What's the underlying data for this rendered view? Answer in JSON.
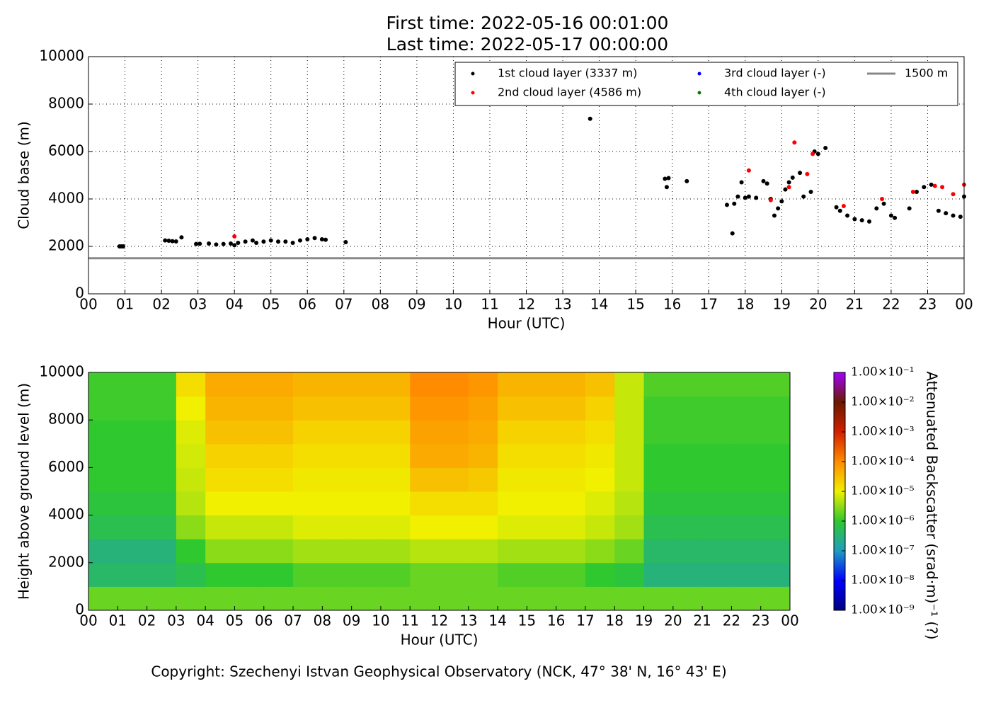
{
  "chart_data": [
    {
      "type": "scatter",
      "title": [
        "First time: 2022-05-16 00:01:00",
        "Last time: 2022-05-17 00:00:00"
      ],
      "x_label": "Hour (UTC)",
      "y_label": "Cloud base (m)",
      "xlim": [
        0,
        24
      ],
      "ylim": [
        0,
        10000
      ],
      "grid": true,
      "legend": "upper right",
      "legend_columns": 3,
      "xticks": [
        {
          "value": 0,
          "label": "00"
        },
        {
          "value": 1,
          "label": "01"
        },
        {
          "value": 2,
          "label": "02"
        },
        {
          "value": 3,
          "label": "03"
        },
        {
          "value": 4,
          "label": "04"
        },
        {
          "value": 5,
          "label": "05"
        },
        {
          "value": 6,
          "label": "06"
        },
        {
          "value": 7,
          "label": "07"
        },
        {
          "value": 8,
          "label": "08"
        },
        {
          "value": 9,
          "label": "09"
        },
        {
          "value": 10,
          "label": "10"
        },
        {
          "value": 11,
          "label": "11"
        },
        {
          "value": 12,
          "label": "12"
        },
        {
          "value": 13,
          "label": "13"
        },
        {
          "value": 14,
          "label": "14"
        },
        {
          "value": 15,
          "label": "15"
        },
        {
          "value": 16,
          "label": "16"
        },
        {
          "value": 17,
          "label": "17"
        },
        {
          "value": 18,
          "label": "18"
        },
        {
          "value": 19,
          "label": "19"
        },
        {
          "value": 20,
          "label": "20"
        },
        {
          "value": 21,
          "label": "21"
        },
        {
          "value": 22,
          "label": "22"
        },
        {
          "value": 23,
          "label": "23"
        },
        {
          "value": 24,
          "label": "00"
        }
      ],
      "yticks": [
        0,
        2000,
        4000,
        6000,
        8000,
        10000
      ],
      "series": [
        {
          "name": "1st cloud layer (3337 m)",
          "color": "#000000",
          "x": [
            0.85,
            0.9,
            0.95,
            2.1,
            2.2,
            2.3,
            2.4,
            2.55,
            2.95,
            3.05,
            3.3,
            3.5,
            3.7,
            3.9,
            4.0,
            4.1,
            4.3,
            4.5,
            4.6,
            4.8,
            5.0,
            5.2,
            5.4,
            5.6,
            5.8,
            6.0,
            6.2,
            6.4,
            6.5,
            7.05,
            13.75,
            15.8,
            15.85,
            15.9,
            16.4,
            17.5,
            17.65,
            17.7,
            17.8,
            17.9,
            18.0,
            18.1,
            18.3,
            18.5,
            18.6,
            18.7,
            18.8,
            18.9,
            19.0,
            19.1,
            19.2,
            19.3,
            19.5,
            19.6,
            19.8,
            19.9,
            20.0,
            20.2,
            20.5,
            20.6,
            20.8,
            21.0,
            21.2,
            21.4,
            21.6,
            21.8,
            22.0,
            22.1,
            22.5,
            22.7,
            22.9,
            23.1,
            23.3,
            23.5,
            23.7,
            23.9,
            24.0
          ],
          "y": [
            2000,
            2000,
            2000,
            2250,
            2240,
            2220,
            2210,
            2380,
            2100,
            2110,
            2120,
            2080,
            2100,
            2120,
            2050,
            2150,
            2200,
            2250,
            2150,
            2200,
            2250,
            2200,
            2200,
            2150,
            2250,
            2300,
            2350,
            2300,
            2280,
            2180,
            7380,
            4850,
            4500,
            4880,
            4750,
            3750,
            2550,
            3800,
            4100,
            4700,
            4050,
            4100,
            4050,
            4750,
            4650,
            4000,
            3300,
            3600,
            3900,
            4400,
            4700,
            4900,
            5100,
            4100,
            4300,
            6000,
            5900,
            6150,
            3650,
            3500,
            3300,
            3150,
            3100,
            3050,
            3600,
            3800,
            3300,
            3200,
            3600,
            4300,
            4500,
            4600,
            3500,
            3400,
            3300,
            3250,
            4100
          ]
        },
        {
          "name": "2nd cloud layer (4586 m)",
          "color": "#ff0000",
          "x": [
            4.0,
            18.1,
            18.7,
            19.2,
            19.35,
            19.7,
            19.85,
            20.7,
            21.75,
            22.6,
            23.2,
            23.4,
            23.7,
            24.0
          ],
          "y": [
            2420,
            5200,
            3950,
            4500,
            6380,
            5050,
            5900,
            3700,
            4000,
            4300,
            4550,
            4500,
            4200,
            4600
          ]
        },
        {
          "name": "3rd cloud layer (-)",
          "color": "#0000ff",
          "x": [],
          "y": []
        },
        {
          "name": "4th cloud layer (-)",
          "color": "#008000",
          "x": [],
          "y": []
        }
      ],
      "reference_line": {
        "name": "1500 m",
        "value": 1500,
        "color": "#888888"
      }
    },
    {
      "type": "heatmap",
      "x_label": "Hour (UTC)",
      "y_label": "Height above ground level (m)",
      "colorbar_label": "Attenuated Backscatter (srad·m)⁻¹ (?)",
      "xlim": [
        0,
        24
      ],
      "ylim": [
        0,
        10000
      ],
      "clim": [
        1e-09,
        0.1
      ],
      "log_color": true,
      "xticks": [
        {
          "value": 0,
          "label": "00"
        },
        {
          "value": 1,
          "label": "01"
        },
        {
          "value": 2,
          "label": "02"
        },
        {
          "value": 3,
          "label": "03"
        },
        {
          "value": 4,
          "label": "04"
        },
        {
          "value": 5,
          "label": "05"
        },
        {
          "value": 6,
          "label": "06"
        },
        {
          "value": 7,
          "label": "07"
        },
        {
          "value": 8,
          "label": "08"
        },
        {
          "value": 9,
          "label": "09"
        },
        {
          "value": 10,
          "label": "10"
        },
        {
          "value": 11,
          "label": "11"
        },
        {
          "value": 12,
          "label": "12"
        },
        {
          "value": 13,
          "label": "13"
        },
        {
          "value": 14,
          "label": "14"
        },
        {
          "value": 15,
          "label": "15"
        },
        {
          "value": 16,
          "label": "16"
        },
        {
          "value": 17,
          "label": "17"
        },
        {
          "value": 18,
          "label": "18"
        },
        {
          "value": 19,
          "label": "19"
        },
        {
          "value": 20,
          "label": "20"
        },
        {
          "value": 21,
          "label": "21"
        },
        {
          "value": 22,
          "label": "22"
        },
        {
          "value": 23,
          "label": "23"
        },
        {
          "value": 24,
          "label": "00"
        }
      ],
      "yticks": [
        0,
        2000,
        4000,
        6000,
        8000,
        10000
      ],
      "cticks": [
        {
          "value": 1e-09,
          "label": "1.00×10⁻⁹"
        },
        {
          "value": 1e-08,
          "label": "1.00×10⁻⁸"
        },
        {
          "value": 1e-07,
          "label": "1.00×10⁻⁷"
        },
        {
          "value": 1e-06,
          "label": "1.00×10⁻⁶"
        },
        {
          "value": 1e-05,
          "label": "1.00×10⁻⁵"
        },
        {
          "value": 0.0001,
          "label": "1.00×10⁻⁴"
        },
        {
          "value": 0.001,
          "label": "1.00×10⁻³"
        },
        {
          "value": 0.01,
          "label": "1.00×10⁻²"
        },
        {
          "value": 0.1,
          "label": "1.00×10⁻¹"
        }
      ],
      "colorscale": [
        "#00007f",
        "#0000ff",
        "#1f9ebf",
        "#2fc82f",
        "#f0f000",
        "#ff8c00",
        "#d22000",
        "#6a1a00",
        "#a000ff"
      ],
      "x_bins": [
        0,
        1,
        2,
        3,
        4,
        5,
        6,
        7,
        8,
        9,
        10,
        11,
        12,
        13,
        14,
        15,
        16,
        17,
        18,
        19,
        20,
        21,
        22,
        23,
        24
      ],
      "y_bins": [
        0,
        1000,
        2000,
        3000,
        4000,
        5000,
        6000,
        7000,
        8000,
        9000,
        10000
      ],
      "z": [
        [
          2e-06,
          4e-07,
          3e-07,
          6e-07,
          8e-07,
          1e-06,
          1e-06,
          1e-06,
          1.2e-06,
          1.2e-06
        ],
        [
          2e-06,
          4e-07,
          3e-07,
          6e-07,
          8e-07,
          1e-06,
          1e-06,
          1e-06,
          1.2e-06,
          1.2e-06
        ],
        [
          2e-06,
          4e-07,
          3e-07,
          6e-07,
          8e-07,
          1e-06,
          1e-06,
          1e-06,
          1.2e-06,
          1.2e-06
        ],
        [
          2e-06,
          6e-07,
          1e-06,
          3e-06,
          5e-06,
          6e-06,
          7e-06,
          8e-06,
          1e-05,
          1.5e-05
        ],
        [
          2e-06,
          1e-06,
          3e-06,
          6e-06,
          1e-05,
          1.5e-05,
          2e-05,
          3e-05,
          4e-05,
          5e-05
        ],
        [
          2e-06,
          1e-06,
          3e-06,
          6e-06,
          1e-05,
          1.5e-05,
          2e-05,
          3e-05,
          4e-05,
          5e-05
        ],
        [
          2e-06,
          1e-06,
          3e-06,
          6e-06,
          1e-05,
          1.5e-05,
          2e-05,
          3e-05,
          4e-05,
          5e-05
        ],
        [
          2e-06,
          1.5e-06,
          4e-06,
          8e-06,
          1e-05,
          1.2e-05,
          1.5e-05,
          2e-05,
          3e-05,
          4e-05
        ],
        [
          2e-06,
          1.5e-06,
          4e-06,
          8e-06,
          1e-05,
          1.2e-05,
          1.5e-05,
          2e-05,
          3e-05,
          4e-05
        ],
        [
          2e-06,
          1.5e-06,
          4e-06,
          8e-06,
          1e-05,
          1.2e-05,
          1.5e-05,
          2e-05,
          3e-05,
          4e-05
        ],
        [
          2e-06,
          1.5e-06,
          4e-06,
          8e-06,
          1e-05,
          1.2e-05,
          1.5e-05,
          2e-05,
          3e-05,
          4e-05
        ],
        [
          2e-06,
          2e-06,
          5e-06,
          1e-05,
          1.5e-05,
          3e-05,
          5e-05,
          6e-05,
          8e-05,
          0.0001
        ],
        [
          2e-06,
          2e-06,
          5e-06,
          1e-05,
          1.5e-05,
          3e-05,
          5e-05,
          6e-05,
          8e-05,
          0.0001
        ],
        [
          2e-06,
          2e-06,
          5e-06,
          1e-05,
          1.5e-05,
          2.5e-05,
          4e-05,
          5e-05,
          6e-05,
          8e-05
        ],
        [
          2e-06,
          1.5e-06,
          4e-06,
          8e-06,
          1e-05,
          1.2e-05,
          1.5e-05,
          2e-05,
          3e-05,
          4e-05
        ],
        [
          2e-06,
          1.5e-06,
          4e-06,
          8e-06,
          1e-05,
          1.2e-05,
          1.5e-05,
          2e-05,
          3e-05,
          4e-05
        ],
        [
          2e-06,
          1.5e-06,
          4e-06,
          8e-06,
          1e-05,
          1.2e-05,
          1.5e-05,
          2e-05,
          3e-05,
          4e-05
        ],
        [
          2e-06,
          1e-06,
          3e-06,
          6e-06,
          8e-06,
          1e-05,
          1.2e-05,
          1.5e-05,
          2e-05,
          3e-05
        ],
        [
          2e-06,
          8e-07,
          2e-06,
          4e-06,
          5e-06,
          6e-06,
          6e-06,
          6e-06,
          6e-06,
          6e-06
        ],
        [
          2e-06,
          3e-07,
          4e-07,
          6e-07,
          8e-07,
          1e-06,
          1e-06,
          1.2e-06,
          1.2e-06,
          1.5e-06
        ],
        [
          2e-06,
          3e-07,
          4e-07,
          6e-07,
          8e-07,
          1e-06,
          1e-06,
          1.2e-06,
          1.2e-06,
          1.5e-06
        ],
        [
          2e-06,
          3e-07,
          4e-07,
          6e-07,
          8e-07,
          1e-06,
          1e-06,
          1.2e-06,
          1.2e-06,
          1.5e-06
        ],
        [
          2e-06,
          3e-07,
          4e-07,
          6e-07,
          8e-07,
          1e-06,
          1e-06,
          1.2e-06,
          1.2e-06,
          1.5e-06
        ],
        [
          2e-06,
          3e-07,
          4e-07,
          6e-07,
          8e-07,
          1e-06,
          1e-06,
          1.2e-06,
          1.2e-06,
          1.5e-06
        ]
      ]
    }
  ],
  "footer": "Copyright: Szechenyi Istvan Geophysical Observatory (NCK, 47° 38' N, 16° 43' E)"
}
